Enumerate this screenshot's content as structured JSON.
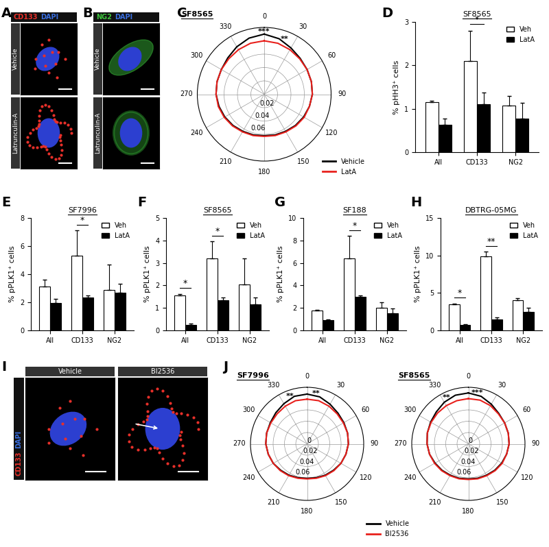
{
  "chart_data": [
    {
      "type": "image",
      "panel": "A",
      "header": [
        {
          "text": "CD133",
          "color": "#e8302a"
        },
        {
          "text": "DAPI",
          "color": "#3a6fe0"
        }
      ],
      "rows": [
        "Vehicle",
        "Latrunculin-A"
      ]
    },
    {
      "type": "image",
      "panel": "B",
      "header": [
        {
          "text": "NG2",
          "color": "#3cc43c"
        },
        {
          "text": "DAPI",
          "color": "#3a6fe0"
        }
      ],
      "rows": [
        "Vehicle",
        "Latrunculin-A"
      ]
    },
    {
      "type": "polar",
      "panel": "C",
      "title": "SF8565",
      "grid": true,
      "theta": [
        0,
        15,
        30,
        45,
        60,
        75,
        90,
        105,
        120,
        135,
        150,
        165,
        180,
        195,
        210,
        225,
        240,
        255,
        270,
        285,
        300,
        315,
        330,
        345
      ],
      "thetaticks": [
        0,
        30,
        60,
        90,
        120,
        150,
        180,
        210,
        240,
        270,
        300,
        330
      ],
      "rlim": [
        0,
        0.1
      ],
      "rticks": [
        0.02,
        0.04,
        0.06
      ],
      "series": [
        {
          "name": "Vehicle",
          "color": "#000000",
          "values": [
            0.09,
            0.086,
            0.08,
            0.076,
            0.074,
            0.073,
            0.072,
            0.07,
            0.068,
            0.066,
            0.064,
            0.063,
            0.062,
            0.063,
            0.064,
            0.066,
            0.068,
            0.07,
            0.072,
            0.073,
            0.074,
            0.077,
            0.082,
            0.087
          ]
        },
        {
          "name": "LatA",
          "color": "#e8201c",
          "values": [
            0.08,
            0.079,
            0.077,
            0.075,
            0.074,
            0.073,
            0.072,
            0.07,
            0.069,
            0.067,
            0.065,
            0.064,
            0.063,
            0.064,
            0.065,
            0.067,
            0.069,
            0.071,
            0.072,
            0.073,
            0.074,
            0.075,
            0.077,
            0.079
          ]
        }
      ],
      "annotations": [
        {
          "theta": 0,
          "label": "***"
        },
        {
          "theta": 20,
          "label": "**"
        }
      ],
      "legend": "lower right"
    },
    {
      "type": "bar",
      "panel": "D",
      "title": "SF8565",
      "y_label": "% pHH3⁺ cells",
      "categories": [
        "All",
        "CD133",
        "NG2"
      ],
      "series": [
        {
          "name": "Veh",
          "color": "#ffffff",
          "values": [
            1.15,
            2.1,
            1.07
          ],
          "errors": [
            0.04,
            0.7,
            0.22
          ]
        },
        {
          "name": "LatA",
          "color": "#000000",
          "values": [
            0.63,
            1.1,
            0.78
          ],
          "errors": [
            0.15,
            0.28,
            0.35
          ]
        }
      ],
      "ylim": [
        0,
        3
      ],
      "yticks": [
        0,
        1,
        2,
        3
      ],
      "significance": [
        {
          "category": "CD133",
          "label": "*"
        }
      ],
      "legend": "upper right"
    },
    {
      "type": "bar",
      "panel": "E",
      "title": "SF7996",
      "y_label": "% pPLK1⁺ cells",
      "categories": [
        "All",
        "CD133",
        "NG2"
      ],
      "series": [
        {
          "name": "Veh",
          "color": "#ffffff",
          "values": [
            3.1,
            5.3,
            2.9
          ],
          "errors": [
            0.5,
            1.8,
            1.8
          ]
        },
        {
          "name": "LatA",
          "color": "#000000",
          "values": [
            1.95,
            2.35,
            2.7
          ],
          "errors": [
            0.3,
            0.15,
            0.6
          ]
        }
      ],
      "ylim": [
        0,
        8
      ],
      "yticks": [
        0,
        2,
        4,
        6,
        8
      ],
      "significance": [
        {
          "category": "CD133",
          "label": "*"
        }
      ],
      "legend": "upper right"
    },
    {
      "type": "bar",
      "panel": "F",
      "title": "SF8565",
      "y_label": "% pPLK1⁺ cells",
      "categories": [
        "All",
        "CD133",
        "NG2"
      ],
      "series": [
        {
          "name": "Veh",
          "color": "#ffffff",
          "values": [
            1.55,
            3.2,
            2.05
          ],
          "errors": [
            0.08,
            0.75,
            1.15
          ]
        },
        {
          "name": "LatA",
          "color": "#000000",
          "values": [
            0.25,
            1.35,
            1.15
          ],
          "errors": [
            0.05,
            0.12,
            0.3
          ]
        }
      ],
      "ylim": [
        0,
        5
      ],
      "yticks": [
        0,
        1,
        2,
        3,
        4,
        5
      ],
      "significance": [
        {
          "category": "All",
          "label": "*"
        },
        {
          "category": "CD133",
          "label": "*"
        }
      ],
      "legend": "upper right"
    },
    {
      "type": "bar",
      "panel": "G",
      "title": "SF188",
      "y_label": "% pPLK1⁺ cells",
      "categories": [
        "All",
        "CD133",
        "NG2"
      ],
      "series": [
        {
          "name": "Veh",
          "color": "#ffffff",
          "values": [
            1.75,
            6.4,
            2.0
          ],
          "errors": [
            0.1,
            2.0,
            0.5
          ]
        },
        {
          "name": "LatA",
          "color": "#000000",
          "values": [
            0.9,
            3.0,
            1.5
          ],
          "errors": [
            0.05,
            0.1,
            0.45
          ]
        }
      ],
      "ylim": [
        0,
        10
      ],
      "yticks": [
        0,
        2,
        4,
        6,
        8,
        10
      ],
      "significance": [
        {
          "category": "CD133",
          "label": "*"
        }
      ],
      "legend": "upper right"
    },
    {
      "type": "bar",
      "panel": "H",
      "title": "DBTRG-05MG",
      "y_label": "% pPLK1⁺ cells",
      "categories": [
        "All",
        "CD133",
        "NG2"
      ],
      "series": [
        {
          "name": "Veh",
          "color": "#ffffff",
          "values": [
            3.5,
            9.9,
            4.0
          ],
          "errors": [
            0.1,
            0.6,
            0.3
          ]
        },
        {
          "name": "LatA",
          "color": "#000000",
          "values": [
            0.75,
            1.5,
            2.5
          ],
          "errors": [
            0.05,
            0.2,
            0.5
          ]
        }
      ],
      "ylim": [
        0,
        15
      ],
      "yticks": [
        0,
        5,
        10,
        15
      ],
      "significance": [
        {
          "category": "All",
          "label": "*"
        },
        {
          "category": "CD133",
          "label": "**"
        }
      ],
      "legend": "upper right"
    },
    {
      "type": "image",
      "panel": "I",
      "header": [
        {
          "text": "CD133",
          "color": "#e8302a"
        },
        {
          "text": "DAPI",
          "color": "#3a6fe0"
        }
      ],
      "columns": [
        "Vehicle",
        "BI2536"
      ]
    },
    {
      "type": "polar",
      "panel": "J",
      "title": "SF7996",
      "grid": true,
      "theta": [
        0,
        15,
        30,
        45,
        60,
        75,
        90,
        105,
        120,
        135,
        150,
        165,
        180,
        195,
        210,
        225,
        240,
        255,
        270,
        285,
        300,
        315,
        330,
        345
      ],
      "thetaticks": [
        0,
        30,
        60,
        90,
        120,
        150,
        180,
        210,
        240,
        270,
        300,
        330
      ],
      "rlim": [
        0,
        0.1
      ],
      "rticks": [
        0,
        0.02,
        0.04,
        0.06
      ],
      "series": [
        {
          "name": "Vehicle",
          "color": "#000000",
          "values": [
            0.088,
            0.086,
            0.081,
            0.077,
            0.075,
            0.074,
            0.073,
            0.071,
            0.069,
            0.066,
            0.064,
            0.062,
            0.061,
            0.062,
            0.064,
            0.066,
            0.069,
            0.071,
            0.073,
            0.074,
            0.075,
            0.078,
            0.082,
            0.087
          ]
        },
        {
          "name": "BI2536",
          "color": "#e8201c",
          "values": [
            0.079,
            0.079,
            0.077,
            0.075,
            0.074,
            0.074,
            0.073,
            0.071,
            0.069,
            0.067,
            0.065,
            0.063,
            0.062,
            0.063,
            0.065,
            0.067,
            0.069,
            0.071,
            0.073,
            0.074,
            0.074,
            0.075,
            0.077,
            0.079
          ]
        }
      ],
      "annotations": [
        {
          "theta": 340,
          "label": "**"
        },
        {
          "theta": 10,
          "label": "**"
        }
      ]
    },
    {
      "type": "polar",
      "title": "SF8565",
      "grid": true,
      "theta": [
        0,
        15,
        30,
        45,
        60,
        75,
        90,
        105,
        120,
        135,
        150,
        165,
        180,
        195,
        210,
        225,
        240,
        255,
        270,
        285,
        300,
        315,
        330,
        345
      ],
      "thetaticks": [
        0,
        30,
        60,
        90,
        120,
        150,
        180,
        210,
        240,
        270,
        300,
        330
      ],
      "rlim": [
        0,
        0.1
      ],
      "rticks": [
        0,
        0.02,
        0.04,
        0.06
      ],
      "series": [
        {
          "name": "Vehicle",
          "color": "#000000",
          "values": [
            0.09,
            0.087,
            0.081,
            0.076,
            0.074,
            0.073,
            0.072,
            0.07,
            0.068,
            0.066,
            0.064,
            0.063,
            0.062,
            0.063,
            0.064,
            0.066,
            0.068,
            0.071,
            0.073,
            0.075,
            0.077,
            0.08,
            0.085,
            0.089
          ]
        },
        {
          "name": "BI2536",
          "color": "#e8201c",
          "values": [
            0.08,
            0.08,
            0.078,
            0.075,
            0.074,
            0.073,
            0.072,
            0.07,
            0.069,
            0.067,
            0.065,
            0.064,
            0.063,
            0.064,
            0.065,
            0.067,
            0.069,
            0.071,
            0.073,
            0.075,
            0.076,
            0.077,
            0.078,
            0.079
          ]
        }
      ],
      "annotations": [
        {
          "theta": 335,
          "label": "**"
        },
        {
          "theta": 10,
          "label": "***"
        }
      ],
      "legend": "lower center"
    }
  ]
}
